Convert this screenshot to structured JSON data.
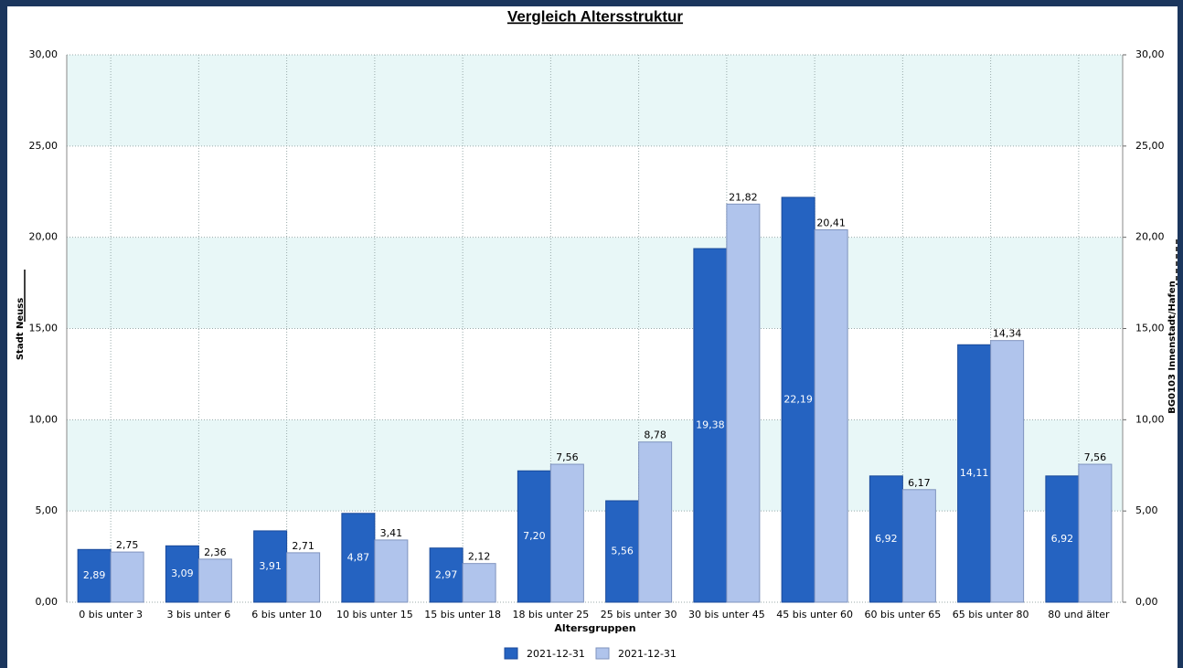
{
  "chart_data": {
    "type": "bar",
    "title": "Vergleich Altersstruktur",
    "x_label": "Altersgruppen",
    "y_label": "Stadt Neuss",
    "y2_label": "BG0103  Innenstadt/Hafen",
    "categories": [
      "0 bis unter 3",
      "3 bis unter 6",
      "6 bis unter 10",
      "10 bis unter 15",
      "15 bis unter 18",
      "18 bis unter 25",
      "25 bis unter 30",
      "30 bis unter 45",
      "45 bis unter 60",
      "60 bis unter 65",
      "65 bis unter 80",
      "80 und älter"
    ],
    "series": [
      {
        "name": "2021-12-31",
        "color": "#2563c1",
        "values": [
          2.89,
          3.09,
          3.91,
          4.87,
          2.97,
          7.2,
          5.56,
          19.38,
          22.19,
          6.92,
          14.11,
          6.92
        ],
        "value_labels": [
          "2,89",
          "3,09",
          "3,91",
          "4,87",
          "2,97",
          "7,20",
          "5,56",
          "19,38",
          "22,19",
          "6,92",
          "14,11",
          "6,92"
        ]
      },
      {
        "name": "2021-12-31",
        "color": "#b0c4ec",
        "axis": "y2",
        "values": [
          2.75,
          2.36,
          2.71,
          3.41,
          2.12,
          7.56,
          8.78,
          21.82,
          20.41,
          6.17,
          14.34,
          7.56
        ],
        "value_labels": [
          "2,75",
          "2,36",
          "2,71",
          "3,41",
          "2,12",
          "7,56",
          "8,78",
          "21,82",
          "20,41",
          "6,17",
          "14,34",
          "7,56"
        ]
      }
    ],
    "ylim": [
      0,
      30
    ],
    "yticks": [
      {
        "value": 0,
        "label": "0,00"
      },
      {
        "value": 5,
        "label": "5,00"
      },
      {
        "value": 10,
        "label": "10,00"
      },
      {
        "value": 15,
        "label": "15,00"
      },
      {
        "value": 20,
        "label": "20,00"
      },
      {
        "value": 25,
        "label": "25,00"
      },
      {
        "value": 30,
        "label": "30,00"
      }
    ],
    "y2lim": [
      0,
      30
    ],
    "y2ticks": [
      {
        "value": 0,
        "label": "0,00"
      },
      {
        "value": 5,
        "label": "5,00"
      },
      {
        "value": 10,
        "label": "10,00"
      },
      {
        "value": 15,
        "label": "15,00"
      },
      {
        "value": 20,
        "label": "20,00"
      },
      {
        "value": 25,
        "label": "25,00"
      },
      {
        "value": 30,
        "label": "30,00"
      }
    ],
    "grid": true,
    "band_color": "#e8f7f7",
    "legend": "bottom"
  }
}
